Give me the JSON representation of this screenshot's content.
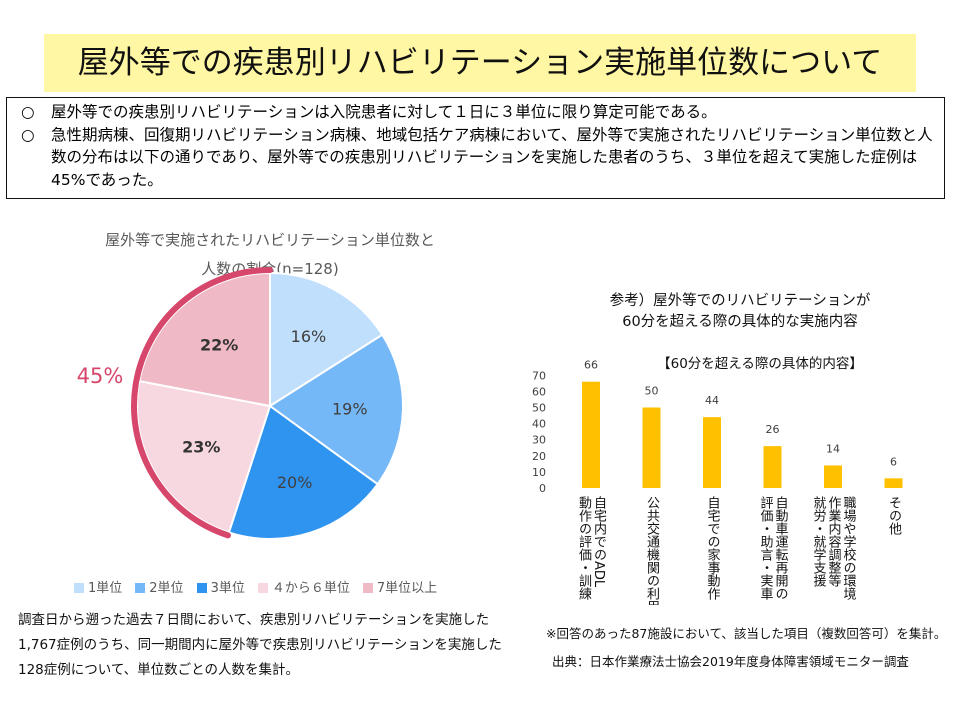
{
  "title": "屋外等での疾患別リハビリテーション実施単位数について",
  "notes": [
    {
      "mark": "○",
      "text": "屋外等での疾患別リハビリテーションは入院患者に対して１日に３単位に限り算定可能である。"
    },
    {
      "mark": "○",
      "text": "急性期病棟、回復期リハビリテーション病棟、地域包括ケア病棟において、屋外等で実施されたリハビリテーション単位数と人数の分布は以下の通りであり、屋外等での疾患別リハビリテーションを実施した患者のうち、３単位を超えて実施した症例は45%であった。"
    }
  ],
  "pie": {
    "title_line1": "屋外等で実施されたリハビリテーション単位数と",
    "title_line2": "人数の割合(n=128)",
    "highlight_label": "45%",
    "highlight_color": "#d6476b",
    "note": "調査日から遡った過去７日間において、疾患別リハビリテーションを実施した1,767症例のうち、同一期間内に屋外等で疾患別リハビリテーションを実施した128症例について、単位数ごとの人数を集計。"
  },
  "bar": {
    "ref_title_line1": "参考）屋外等でのリハビリテーションが",
    "ref_title_line2": "60分を超える際の具体的な実施内容",
    "subtitle": "【60分を超える際の具体的内容】",
    "footnote": "※回答のあった87施設において、該当した項目（複数回答可）を集計。",
    "source": "出典：日本作業療法士協会2019年度身体障害領域モニター調査"
  },
  "chart_data": [
    {
      "type": "pie",
      "title": "屋外等で実施されたリハビリテーション単位数と人数の割合(n=128)",
      "labels": [
        "1単位",
        "2単位",
        "3単位",
        "４から６単位",
        "7単位以上"
      ],
      "values": [
        16,
        19,
        20,
        23,
        22
      ],
      "value_labels": [
        "16%",
        "19%",
        "20%",
        "23%",
        "22%"
      ],
      "colors": [
        "#bfdffc",
        "#75b8f8",
        "#2f94f0",
        "#f8d8e0",
        "#f0b9c6"
      ],
      "start": "12 o'clock",
      "direction": "clockwise",
      "legend_position": "bottom"
    },
    {
      "type": "bar",
      "title": "【60分を超える際の具体的内容】",
      "categories": [
        "自宅内でのADL動作の評価・訓練",
        "公共交通機関の利用",
        "自宅での家事動作",
        "自動車運転再開の評価・助言・実車",
        "職場や学校の環境・作業内容調整等就労・就学支援",
        "その他"
      ],
      "category_lines": [
        [
          "自宅内でのADL",
          "動作の評価・訓練"
        ],
        [
          "公共交通機関の利用"
        ],
        [
          "自宅での家事動作"
        ],
        [
          "自動車運転再開の",
          "評価・助言・実車"
        ],
        [
          "職場や学校の環境・",
          "作業内容調整等",
          "就労・就学支援"
        ],
        [
          "その他"
        ]
      ],
      "values": [
        66,
        50,
        44,
        26,
        14,
        6
      ],
      "ylim": [
        0,
        70
      ],
      "yticks": [
        0,
        10,
        20,
        30,
        40,
        50,
        60,
        70
      ],
      "color": "#ffc000",
      "grid": false
    }
  ]
}
